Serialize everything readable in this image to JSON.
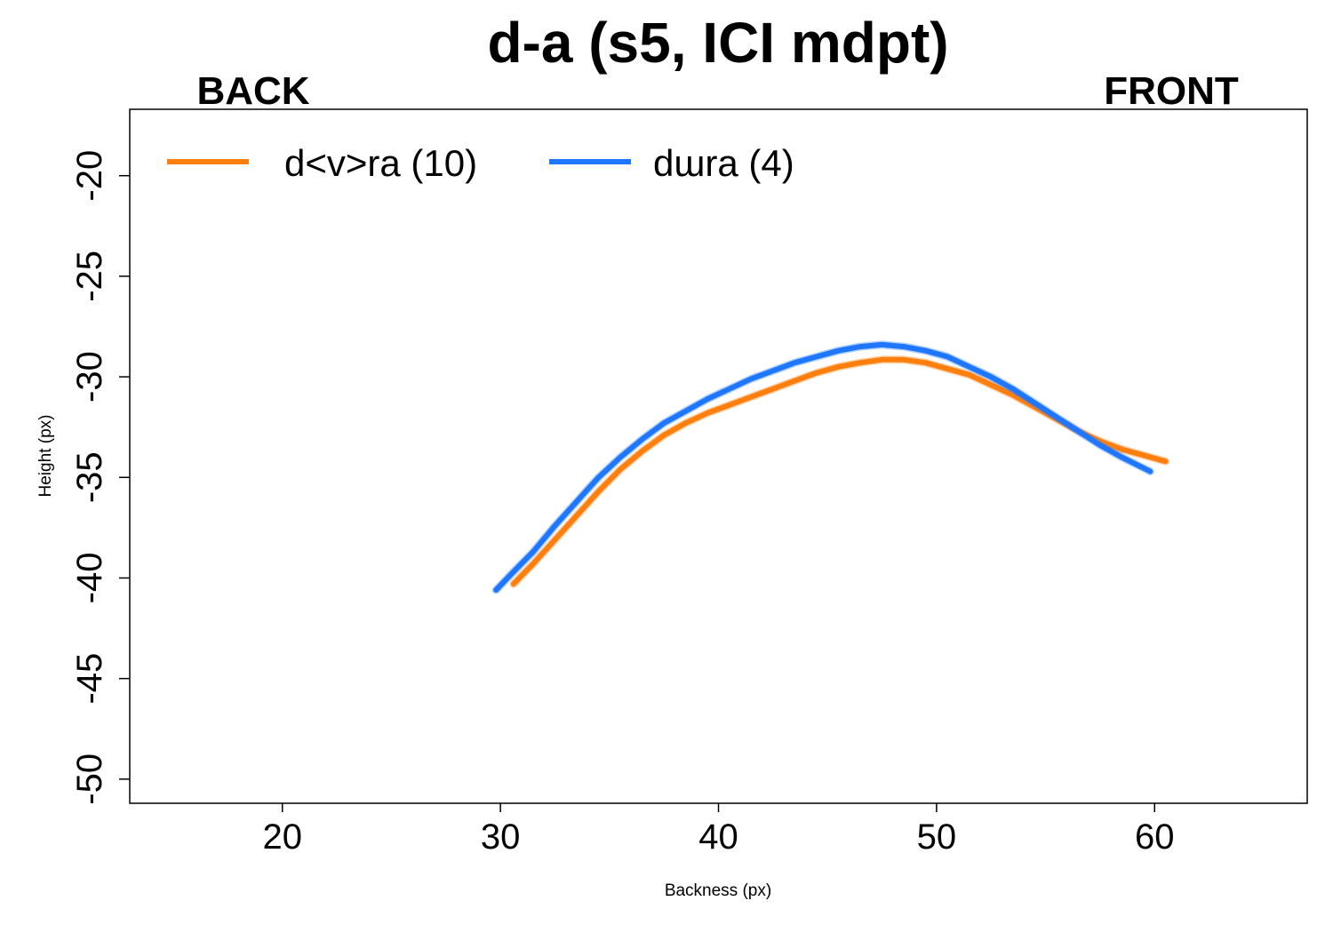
{
  "chart_data": {
    "type": "line",
    "title": "d-a (s5, ICI mdpt)",
    "back_label": "BACK",
    "front_label": "FRONT",
    "xlabel": "Backness (px)",
    "ylabel": "Height (px)",
    "xlim": [
      13,
      67
    ],
    "ylim": [
      -51.2,
      -16.7
    ],
    "xticks": [
      20,
      30,
      40,
      50,
      60
    ],
    "yticks": [
      -20,
      -25,
      -30,
      -35,
      -40,
      -45,
      -50
    ],
    "grid": false,
    "legend_position": "top-left",
    "series": [
      {
        "name": "d<v>ra (10)",
        "color": "#ff7f0e",
        "points": [
          [
            30.6,
            -40.3
          ],
          [
            31.5,
            -39.3
          ],
          [
            32.5,
            -38.1
          ],
          [
            33.5,
            -36.9
          ],
          [
            34.5,
            -35.7
          ],
          [
            35.5,
            -34.6
          ],
          [
            36.5,
            -33.7
          ],
          [
            37.5,
            -32.9
          ],
          [
            38.5,
            -32.3
          ],
          [
            39.5,
            -31.8
          ],
          [
            40.5,
            -31.4
          ],
          [
            41.5,
            -31.0
          ],
          [
            42.5,
            -30.6
          ],
          [
            43.5,
            -30.2
          ],
          [
            44.5,
            -29.8
          ],
          [
            45.5,
            -29.5
          ],
          [
            46.5,
            -29.3
          ],
          [
            47.5,
            -29.15
          ],
          [
            48.5,
            -29.15
          ],
          [
            49.5,
            -29.3
          ],
          [
            50.5,
            -29.6
          ],
          [
            51.5,
            -29.9
          ],
          [
            52.5,
            -30.4
          ],
          [
            53.5,
            -30.9
          ],
          [
            54.5,
            -31.5
          ],
          [
            55.5,
            -32.1
          ],
          [
            56.5,
            -32.7
          ],
          [
            57.5,
            -33.2
          ],
          [
            58.5,
            -33.6
          ],
          [
            59.5,
            -33.9
          ],
          [
            60.5,
            -34.2
          ]
        ]
      },
      {
        "name": "dɯra (4)",
        "color": "#1f77ff",
        "points": [
          [
            29.8,
            -40.6
          ],
          [
            30.5,
            -39.8
          ],
          [
            31.5,
            -38.7
          ],
          [
            32.5,
            -37.4
          ],
          [
            33.5,
            -36.2
          ],
          [
            34.5,
            -35.0
          ],
          [
            35.5,
            -34.0
          ],
          [
            36.5,
            -33.1
          ],
          [
            37.5,
            -32.3
          ],
          [
            38.5,
            -31.7
          ],
          [
            39.5,
            -31.1
          ],
          [
            40.5,
            -30.6
          ],
          [
            41.5,
            -30.1
          ],
          [
            42.5,
            -29.7
          ],
          [
            43.5,
            -29.3
          ],
          [
            44.5,
            -29.0
          ],
          [
            45.5,
            -28.7
          ],
          [
            46.5,
            -28.5
          ],
          [
            47.5,
            -28.4
          ],
          [
            48.5,
            -28.5
          ],
          [
            49.5,
            -28.7
          ],
          [
            50.5,
            -29.0
          ],
          [
            51.5,
            -29.5
          ],
          [
            52.5,
            -30.0
          ],
          [
            53.5,
            -30.6
          ],
          [
            54.5,
            -31.3
          ],
          [
            55.5,
            -32.0
          ],
          [
            56.5,
            -32.7
          ],
          [
            57.5,
            -33.4
          ],
          [
            58.5,
            -34.0
          ],
          [
            59.8,
            -34.7
          ]
        ]
      }
    ]
  }
}
